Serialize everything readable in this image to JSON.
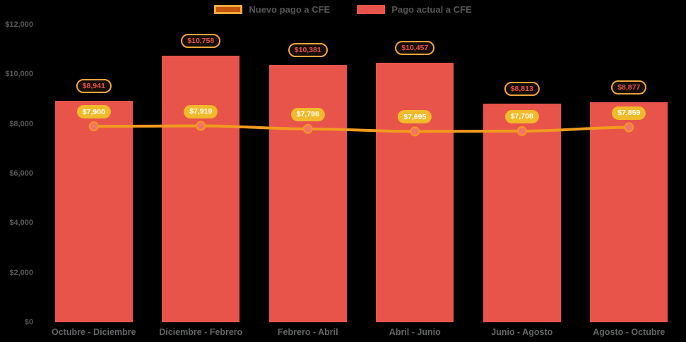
{
  "colors": {
    "background": "#000000",
    "bar_fill": "#e8544a",
    "line_stroke": "#f29b1e",
    "marker_fill": "#f4736b",
    "marker_stroke": "#f29b1e",
    "bar_pill_bg": "#170d09",
    "bar_pill_border": "#f2a53c",
    "bar_pill_text": "#e8544a",
    "line_pill_bg": "#f0ba2a",
    "line_pill_text": "#ffffff",
    "axis_text": "#595959",
    "legend_text": "#565656",
    "legend_line_swatch_fill": "#c55309",
    "legend_line_swatch_border": "#f3a83b"
  },
  "legend": [
    {
      "label": "Nuevo pago a CFE",
      "type": "line"
    },
    {
      "label": "Pago actual a CFE",
      "type": "bar"
    }
  ],
  "chart_data": {
    "type": "bar",
    "title": "",
    "xlabel": "",
    "ylabel": "",
    "categories": [
      "Octubre - Diciembre",
      "Diciembre - Febrero",
      "Febrero - Abril",
      "Abril - Junio",
      "Junio - Agosto",
      "Agosto - Octubre"
    ],
    "series": [
      {
        "name": "Pago actual a CFE",
        "type": "bar",
        "color": "#e8544a",
        "values": [
          8941,
          10758,
          10381,
          10457,
          8813,
          8877
        ],
        "labels": [
          "$8,941",
          "$10,758",
          "$10,381",
          "$10,457",
          "$8,813",
          "$8,877"
        ]
      },
      {
        "name": "Nuevo pago a CFE",
        "type": "line",
        "color": "#f29b1e",
        "values": [
          7900,
          7919,
          7796,
          7695,
          7708,
          7859
        ],
        "labels": [
          "$7,900",
          "$7,919",
          "$7,796",
          "$7,695",
          "$7,708",
          "$7,859"
        ]
      }
    ],
    "ylim": [
      0,
      12000
    ],
    "yticks": [
      {
        "value": 0,
        "label": "$0"
      },
      {
        "value": 2000,
        "label": "$2,000"
      },
      {
        "value": 4000,
        "label": "$4,000"
      },
      {
        "value": 6000,
        "label": "$6,000"
      },
      {
        "value": 8000,
        "label": "$8,000"
      },
      {
        "value": 10000,
        "label": "$10,000"
      },
      {
        "value": 12000,
        "label": "$12,000"
      }
    ],
    "grid": false,
    "legend_position": "top-center"
  }
}
